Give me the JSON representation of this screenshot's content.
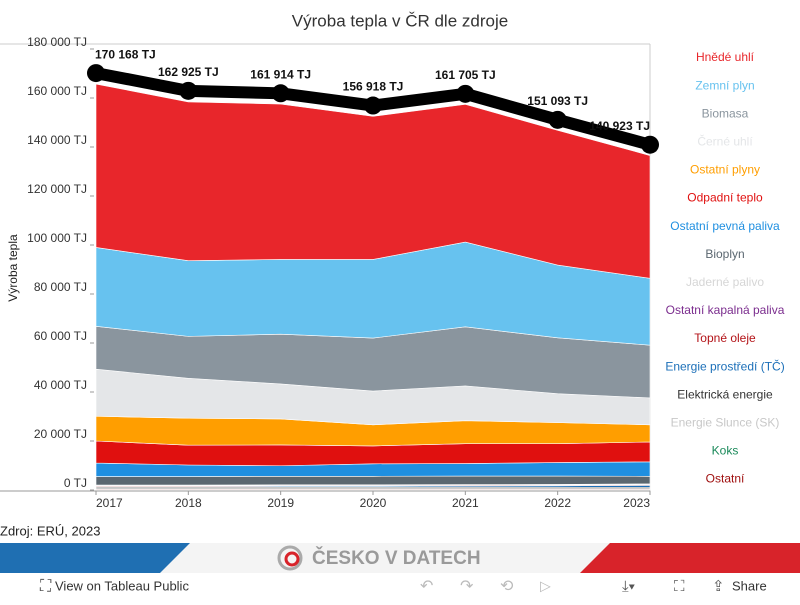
{
  "chart_data": {
    "type": "stacked-area",
    "title": "Výroba tepla v ČR dle zdroje",
    "y_label": "Výroba tepla",
    "x": [
      2017,
      2018,
      2019,
      2020,
      2021,
      2022,
      2023
    ],
    "xlim": [
      2017,
      2023
    ],
    "xticks": [
      2017,
      2018,
      2019,
      2020,
      2021,
      2022,
      2023
    ],
    "ylim": [
      0,
      180000
    ],
    "yticks": [
      {
        "value": 0,
        "label": "0 TJ"
      },
      {
        "value": 20000,
        "label": "20 000 TJ"
      },
      {
        "value": 40000,
        "label": "40 000 TJ"
      },
      {
        "value": 60000,
        "label": "60 000 TJ"
      },
      {
        "value": 80000,
        "label": "80 000 TJ"
      },
      {
        "value": 100000,
        "label": "100 000 TJ"
      },
      {
        "value": 120000,
        "label": "120 000 TJ"
      },
      {
        "value": 140000,
        "label": "140 000 TJ"
      },
      {
        "value": 160000,
        "label": "160 000 TJ"
      },
      {
        "value": 180000,
        "label": "180 000 TJ"
      }
    ],
    "legend": "right",
    "series": [
      {
        "name": "Hnědé uhlí",
        "color": "#e8262b",
        "values": [
          66700,
          64800,
          63400,
          58400,
          56200,
          55000,
          50100
        ]
      },
      {
        "name": "Zemní plyn",
        "color": "#67c2ef",
        "values": [
          32200,
          30900,
          30500,
          32100,
          34600,
          29700,
          27300
        ]
      },
      {
        "name": "Biomasa",
        "color": "#8a959e",
        "values": [
          17500,
          17100,
          20300,
          21600,
          24100,
          22800,
          21500
        ]
      },
      {
        "name": "Černé uhlí",
        "color": "#e4e6e8",
        "values": [
          19200,
          16300,
          14300,
          13800,
          14200,
          11800,
          11000
        ]
      },
      {
        "name": "Ostatní plyny",
        "color": "#ff9e00",
        "values": [
          10100,
          11000,
          10600,
          8600,
          9400,
          8600,
          7000
        ]
      },
      {
        "name": "Odpadní teplo",
        "color": "#e0100f",
        "values": [
          9000,
          8100,
          8500,
          7300,
          8100,
          7700,
          8100
        ]
      },
      {
        "name": "Ostatní pevná paliva",
        "color": "#1f8fe0",
        "values": [
          5500,
          4700,
          4300,
          5100,
          5100,
          5500,
          5900
        ]
      },
      {
        "name": "Bioplyn",
        "color": "#5b6770",
        "values": [
          3500,
          3500,
          3500,
          3500,
          3500,
          3400,
          3100
        ]
      },
      {
        "name": "Jaderné palivo",
        "color": "#d6d6d6",
        "values": [
          100,
          100,
          100,
          100,
          100,
          100,
          100
        ]
      },
      {
        "name": "Ostatní kapalná paliva",
        "color": "#7b2d8e",
        "values": [
          200,
          200,
          200,
          200,
          200,
          200,
          200
        ]
      },
      {
        "name": "Topné oleje",
        "color": "#b31217",
        "values": [
          300,
          300,
          300,
          300,
          300,
          300,
          300
        ]
      },
      {
        "name": "Energie prostředí (TČ)",
        "color": "#1b6fb8",
        "values": [
          300,
          300,
          400,
          400,
          500,
          600,
          800
        ]
      },
      {
        "name": "Elektrická energie",
        "color": "#333333",
        "values": [
          500,
          500,
          500,
          500,
          500,
          500,
          500
        ]
      },
      {
        "name": "Energie Slunce (SK)",
        "color": "#c8c8c8",
        "values": [
          100,
          100,
          100,
          100,
          100,
          100,
          100
        ]
      },
      {
        "name": "Koks",
        "color": "#1a8a5a",
        "values": [
          200,
          200,
          200,
          200,
          200,
          200,
          200
        ]
      },
      {
        "name": "Ostatní",
        "color": "#a01010",
        "values": [
          300,
          300,
          300,
          300,
          300,
          300,
          300
        ]
      }
    ],
    "totals": {
      "color": "#000000",
      "values": [
        170168,
        162925,
        161914,
        156918,
        161705,
        151093,
        140923
      ],
      "value_labels": [
        "170 168 TJ",
        "162 925 TJ",
        "161 914 TJ",
        "156 918 TJ",
        "161 705 TJ",
        "151 093 TJ",
        "140 923 TJ"
      ]
    }
  },
  "source": "Zdroj: ERÚ, 2023",
  "footer": {
    "brand": "ČESKO V DATECH",
    "view": "View on Tableau Public",
    "share": "Share"
  }
}
